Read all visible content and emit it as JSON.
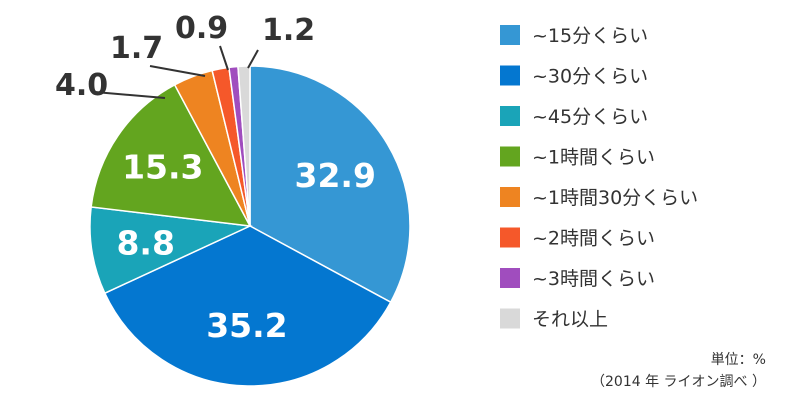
{
  "chart_data": {
    "type": "pie",
    "categories": [
      "~15分くらい",
      "~30分くらい",
      "~45分くらい",
      "~1時間くらい",
      "~1時間30分くらい",
      "~2時間くらい",
      "~3時間くらい",
      "それ以上"
    ],
    "values": [
      32.9,
      35.2,
      8.8,
      15.3,
      4.0,
      1.7,
      0.9,
      1.2
    ],
    "value_labels": [
      "32.9",
      "35.2",
      "8.8",
      "15.3",
      "4.0",
      "1.7",
      "0.9",
      "1.2"
    ],
    "colors": [
      "#3597d4",
      "#0477d0",
      "#1aa4b8",
      "#63a51f",
      "#ee8421",
      "#f5582a",
      "#a04dbe",
      "#d9d9d9"
    ],
    "start": "12 o'clock, clockwise",
    "legend_position": "right",
    "unit_note": "単位：%",
    "source_note": "（2014 年 ライオン調べ ）"
  }
}
